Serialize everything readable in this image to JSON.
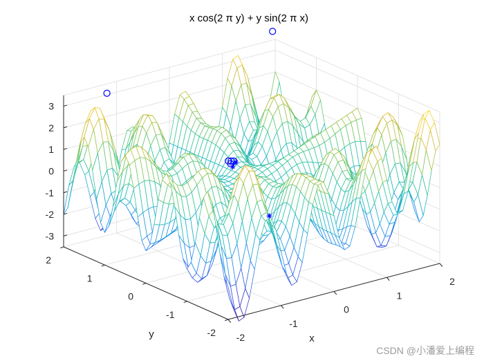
{
  "chart_data": {
    "type": "surface",
    "title": "x cos(2 π y) + y sin(2 π x)",
    "function": "x*cos(2*pi*y) + y*sin(2*pi*x)",
    "xlabel": "x",
    "ylabel": "y",
    "zlabel": "",
    "xlim": [
      -2,
      2
    ],
    "ylim": [
      -2,
      2
    ],
    "zlim": [
      -3.5,
      3.5
    ],
    "xticks": [
      "-2",
      "-1",
      "0",
      "1",
      "2"
    ],
    "yticks": [
      "-2",
      "-1",
      "0",
      "1",
      "2"
    ],
    "zticks": [
      "-3",
      "-2",
      "-1",
      "0",
      "1",
      "2",
      "3"
    ],
    "grid": true,
    "mesh_resolution": 40,
    "colormap": [
      "#3e26a8",
      "#4154e0",
      "#2d8cf0",
      "#1bb5c8",
      "#38c696",
      "#9cc64e",
      "#e4bb3a",
      "#f9e02a"
    ],
    "markers": [
      {
        "symbol": "circle",
        "x": 1.95,
        "y": 2.0,
        "z": 3.9,
        "color": "#0000ff"
      },
      {
        "symbol": "circle",
        "x": -1.26,
        "y": 1.9,
        "z": 3.2,
        "color": "#0000ff"
      },
      {
        "symbol": "circle",
        "x": -1.75,
        "y": -1.75,
        "z": 3.45,
        "color": "#0000ff"
      },
      {
        "symbol": "circle",
        "x": -1.78,
        "y": -1.72,
        "z": 3.45,
        "color": "#0000ff"
      },
      {
        "symbol": "circle",
        "x": -1.72,
        "y": -1.78,
        "z": 3.45,
        "color": "#0000ff"
      },
      {
        "symbol": "circle",
        "x": -1.8,
        "y": -1.8,
        "z": 3.4,
        "color": "#0000ff"
      },
      {
        "symbol": "star",
        "x": -1.8,
        "y": -1.85,
        "z": 3.3,
        "color": "#0000ff"
      },
      {
        "symbol": "star",
        "x": -1.7,
        "y": -1.8,
        "z": 3.4,
        "color": "#0000ff"
      },
      {
        "symbol": "star",
        "x": -0.25,
        "y": -0.75,
        "z": -0.9,
        "color": "#0000ff"
      }
    ]
  },
  "watermark": "CSDN @小潘爱上编程"
}
